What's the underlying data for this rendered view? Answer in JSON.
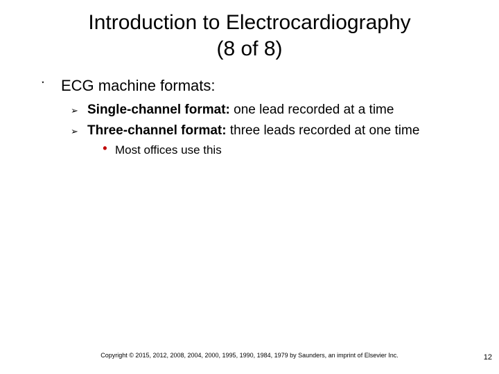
{
  "title_line1": "Introduction to Electrocardiography",
  "title_line2": "(8 of 8)",
  "l1_text": "ECG machine formats:",
  "l2a_bold": "Single-channel format:",
  "l2a_rest": " one lead recorded at a time",
  "l2b_bold": "Three-channel format:",
  "l2b_rest": " three leads recorded at one time",
  "l3_text": "Most offices use this",
  "copyright": "Copyright © 2015, 2012, 2008, 2004, 2000, 1995, 1990, 1984, 1979 by Saunders, an imprint of Elsevier Inc.",
  "page_number": "12",
  "bullets": {
    "l1": "་",
    "l2": "➢",
    "l3": "•"
  },
  "colors": {
    "l3_bullet": "#c00000",
    "text": "#000000",
    "background": "#ffffff"
  }
}
